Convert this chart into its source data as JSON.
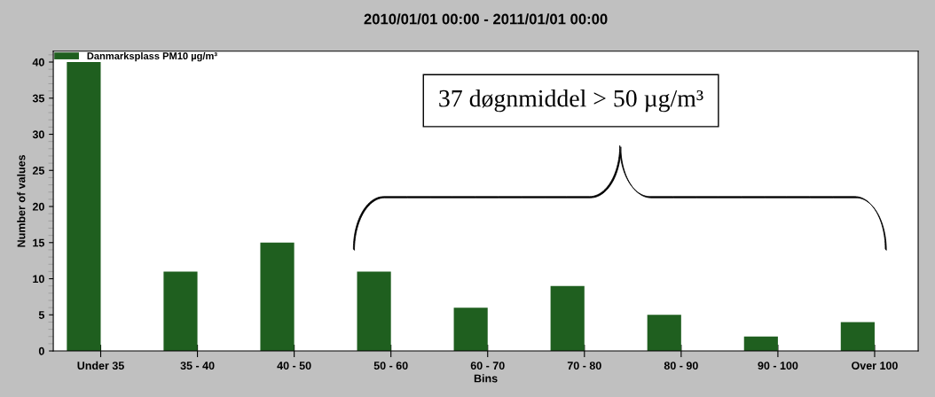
{
  "chart_data": {
    "type": "bar",
    "title": "2010/01/01 00:00 - 2011/01/01 00:00",
    "xlabel": "Bins",
    "ylabel": "Number of values",
    "categories": [
      "Under 35",
      "35 - 40",
      "40 - 50",
      "50 - 60",
      "60 - 70",
      "70 - 80",
      "80 - 90",
      "90 - 100",
      "Over 100"
    ],
    "series": [
      {
        "name": "Danmarksplass PM10 µg/m³",
        "color": "#1f5f1f",
        "values": [
          40,
          11,
          15,
          11,
          6,
          9,
          5,
          2,
          4
        ]
      }
    ],
    "ylim": [
      0,
      41.5
    ],
    "yticks": [
      0,
      5,
      10,
      15,
      20,
      25,
      30,
      35,
      40
    ],
    "annotations": [
      "37 døgnmiddel > 50 µg/m³"
    ],
    "legend": "top left",
    "grid": false
  }
}
